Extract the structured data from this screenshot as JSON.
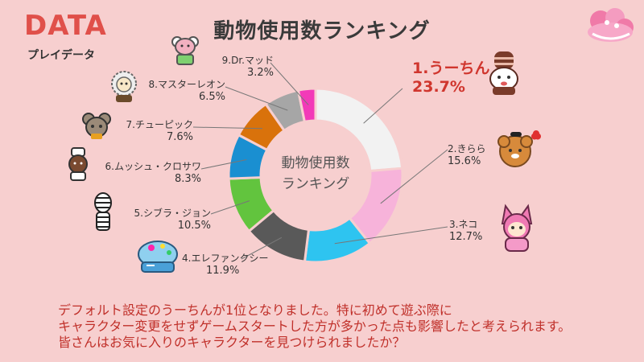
{
  "header": {
    "brand": "DATA",
    "brand_sub": "プレイデータ",
    "title": "動物使用数ランキング"
  },
  "center_label": [
    "動物使用数",
    "ランキング"
  ],
  "chart_data": {
    "type": "pie",
    "title": "動物使用数ランキング",
    "donut": true,
    "slices": [
      {
        "label": "1.うーちん",
        "value": 23.7,
        "pct": "23.7%",
        "color": "#f2f2f2"
      },
      {
        "label": "2.きらら",
        "value": 15.6,
        "pct": "15.6%",
        "color": "#f7b3da"
      },
      {
        "label": "3.ネコ",
        "value": 12.7,
        "pct": "12.7%",
        "color": "#2ec4f0"
      },
      {
        "label": "4.エレファンクシー",
        "value": 11.9,
        "pct": "11.9%",
        "color": "#595959"
      },
      {
        "label": "5.シブラ・ジョン",
        "value": 10.5,
        "pct": "10.5%",
        "color": "#62c43e"
      },
      {
        "label": "6.ムッシュ・クロサワ",
        "value": 8.3,
        "pct": "8.3%",
        "color": "#1a8fd1"
      },
      {
        "label": "7.チューピック",
        "value": 7.6,
        "pct": "7.6%",
        "color": "#d9720b"
      },
      {
        "label": "8.マスターレオン",
        "value": 6.5,
        "pct": "6.5%",
        "color": "#a6a6a6"
      },
      {
        "label": "9.Dr.マッド",
        "value": 3.2,
        "pct": "3.2%",
        "color": "#f23ab8"
      }
    ]
  },
  "caption": [
    "デフォルト設定のうーちんが1位となりました。特に初めて遊ぶ際に",
    "キャラクター変更をせずゲームスタートした方が多かった点も影響したと考えられます。",
    "皆さんはお気に入りのキャラクターを見つけられましたか？"
  ]
}
